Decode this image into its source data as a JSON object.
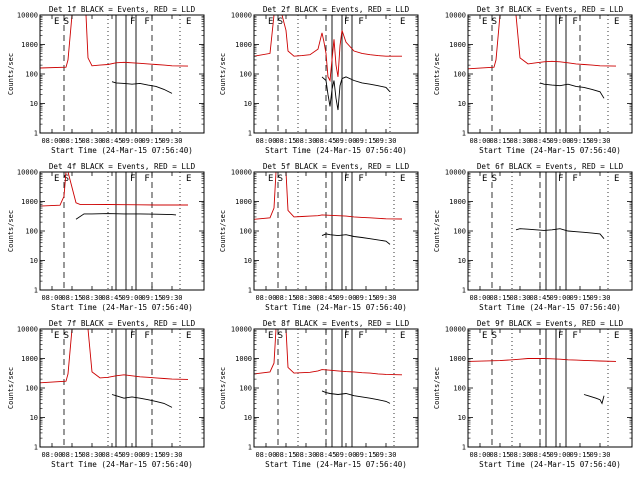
{
  "figure": {
    "shared": {
      "xlabel": "Start Time (24-Mar-15 07:56:40)",
      "ylabel": "Counts/sec",
      "x_tick_labels": [
        "08:00",
        "08:15",
        "08:30",
        "08:45",
        "09:00",
        "09:15",
        "09:30"
      ],
      "y_tick_labels": [
        "1",
        "10",
        "100",
        "1000",
        "10000"
      ],
      "region_markers": [
        "E",
        "S",
        "F",
        "F",
        "E"
      ],
      "colors": {
        "events": "#000000",
        "lld": "#cc0000",
        "axes": "#000000"
      }
    }
  },
  "chart_data": [
    {
      "type": "line",
      "title": "Det 1f BLACK = Events, RED = LLD",
      "xlabel": "Start Time (24-Mar-15 07:56:40)",
      "ylabel": "Counts/sec",
      "x_unit": "minutes after 08:00",
      "xlim": [
        -3,
        38
      ],
      "ylim": [
        1,
        10000
      ],
      "yscale": "log",
      "grid": false,
      "markers": {
        "dashed": [
          3,
          25
        ],
        "dotted": [
          14,
          32
        ],
        "solid": [
          16,
          18.5,
          21
        ]
      },
      "series": [
        {
          "name": "BLACK = Events",
          "color": "#000000",
          "x": [
            15,
            16,
            18,
            20,
            22,
            24,
            26,
            28,
            30
          ],
          "values": [
            55,
            50,
            48,
            45,
            48,
            42,
            38,
            30,
            22
          ]
        },
        {
          "name": "RED = LLD",
          "color": "#cc0000",
          "x": [
            -3,
            3.5,
            4,
            5,
            6,
            8.5,
            9,
            10,
            12,
            14,
            16,
            18,
            20,
            22,
            24,
            26,
            28,
            30,
            34
          ],
          "values": [
            160,
            170,
            300,
            10000,
            10000,
            10000,
            350,
            190,
            200,
            210,
            240,
            250,
            240,
            230,
            220,
            210,
            200,
            190,
            185
          ]
        }
      ]
    },
    {
      "type": "line",
      "title": "Det 2f BLACK = Events, RED = LLD",
      "xlabel": "Start Time (24-Mar-15 07:56:40)",
      "ylabel": "Counts/sec",
      "x_unit": "minutes after 08:00",
      "xlim": [
        -3,
        38
      ],
      "ylim": [
        1,
        10000
      ],
      "yscale": "log",
      "grid": false,
      "markers": {
        "dashed": [
          3,
          15
        ],
        "dotted": [
          8,
          31
        ],
        "solid": [
          16.5,
          19,
          21.5
        ]
      },
      "series": [
        {
          "name": "BLACK = Events",
          "color": "#000000",
          "x": [
            14,
            15,
            15.5,
            16,
            16.5,
            17,
            17.5,
            18,
            18.5,
            19,
            20,
            22,
            24,
            26,
            28,
            30,
            31
          ],
          "values": [
            80,
            60,
            20,
            8,
            30,
            60,
            15,
            6,
            40,
            70,
            80,
            60,
            50,
            45,
            40,
            35,
            25
          ]
        },
        {
          "name": "RED = LLD",
          "color": "#cc0000",
          "x": [
            -3,
            1,
            2,
            2.5,
            4,
            5,
            5.5,
            7,
            9,
            11,
            13,
            14,
            14.5,
            15,
            15.5,
            16,
            16.5,
            17,
            17.5,
            18,
            18.5,
            19,
            20,
            22,
            24,
            26,
            28,
            30,
            34
          ],
          "values": [
            400,
            500,
            10000,
            10000,
            10000,
            3000,
            600,
            400,
            420,
            450,
            700,
            2500,
            1200,
            500,
            80,
            60,
            300,
            1500,
            200,
            80,
            900,
            3000,
            1200,
            600,
            500,
            450,
            420,
            400,
            400
          ]
        }
      ]
    },
    {
      "type": "line",
      "title": "Det 3f BLACK = Events, RED = LLD",
      "xlabel": "Start Time (24-Mar-15 07:56:40)",
      "ylabel": "Counts/sec",
      "x_unit": "minutes after 08:00",
      "xlim": [
        -3,
        38
      ],
      "ylim": [
        1,
        10000
      ],
      "yscale": "log",
      "grid": false,
      "markers": {
        "dashed": [
          3,
          25
        ],
        "dotted": [
          15,
          32
        ],
        "solid": [
          16.5,
          19,
          21.5
        ]
      },
      "series": [
        {
          "name": "BLACK = Events",
          "color": "#000000",
          "x": [
            15,
            16,
            18,
            20,
            22,
            24,
            26,
            28,
            30,
            31
          ],
          "values": [
            50,
            45,
            42,
            40,
            45,
            38,
            35,
            30,
            25,
            15
          ]
        },
        {
          "name": "RED = LLD",
          "color": "#cc0000",
          "x": [
            -3,
            3.5,
            4,
            5,
            7,
            9,
            10,
            12,
            14,
            16,
            18,
            20,
            22,
            24,
            26,
            28,
            30,
            34
          ],
          "values": [
            150,
            170,
            300,
            10000,
            10000,
            10000,
            350,
            220,
            240,
            260,
            270,
            260,
            240,
            220,
            210,
            200,
            190,
            185
          ]
        }
      ]
    },
    {
      "type": "line",
      "title": "Det 4f BLACK = Events, RED = LLD",
      "xlabel": "Start Time (24-Mar-15 07:56:40)",
      "ylabel": "Counts/sec",
      "x_unit": "minutes after 08:00",
      "xlim": [
        -3,
        38
      ],
      "ylim": [
        1,
        10000
      ],
      "yscale": "log",
      "grid": false,
      "markers": {
        "dashed": [
          3,
          25
        ],
        "dotted": [
          14,
          32
        ],
        "solid": [
          16,
          18.5,
          21
        ]
      },
      "series": [
        {
          "name": "BLACK = Events",
          "color": "#000000",
          "x": [
            6,
            8,
            10,
            14,
            18,
            22,
            26,
            30,
            31
          ],
          "values": [
            250,
            380,
            380,
            390,
            380,
            380,
            370,
            360,
            350
          ]
        },
        {
          "name": "RED = LLD",
          "color": "#cc0000",
          "x": [
            -3,
            2,
            3,
            3.5,
            4,
            5,
            6,
            7,
            10,
            14,
            18,
            22,
            26,
            30,
            34
          ],
          "values": [
            700,
            750,
            1500,
            10000,
            10000,
            3000,
            900,
            800,
            800,
            790,
            780,
            770,
            760,
            760,
            760
          ]
        }
      ]
    },
    {
      "type": "line",
      "title": "Det 5f BLACK = Events, RED = LLD",
      "xlabel": "Start Time (24-Mar-15 07:56:40)",
      "ylabel": "Counts/sec",
      "x_unit": "minutes after 08:00",
      "xlim": [
        -3,
        38
      ],
      "ylim": [
        1,
        10000
      ],
      "yscale": "log",
      "grid": false,
      "markers": {
        "dashed": [
          3,
          15
        ],
        "dotted": [
          8,
          32
        ],
        "solid": [
          16.5,
          19,
          21.5
        ]
      },
      "series": [
        {
          "name": "BLACK = Events",
          "color": "#000000",
          "x": [
            14,
            15,
            16,
            18,
            20,
            22,
            24,
            26,
            28,
            30,
            31
          ],
          "values": [
            70,
            80,
            75,
            70,
            75,
            65,
            60,
            55,
            50,
            45,
            35
          ]
        },
        {
          "name": "RED = LLD",
          "color": "#cc0000",
          "x": [
            -3,
            1,
            2,
            2.5,
            4,
            5,
            5.5,
            7,
            9,
            11,
            13,
            14,
            16,
            18,
            20,
            22,
            24,
            26,
            28,
            30,
            34
          ],
          "values": [
            250,
            280,
            600,
            10000,
            10000,
            10000,
            500,
            300,
            310,
            320,
            330,
            350,
            340,
            330,
            320,
            300,
            290,
            280,
            270,
            260,
            255
          ]
        }
      ]
    },
    {
      "type": "line",
      "title": "Det 6f BLACK = Events, RED = LLD",
      "xlabel": "Start Time (24-Mar-15 07:56:40)",
      "ylabel": "Counts/sec",
      "x_unit": "minutes after 08:00",
      "xlim": [
        -3,
        38
      ],
      "ylim": [
        1,
        10000
      ],
      "yscale": "log",
      "grid": false,
      "markers": {
        "dashed": [
          3,
          15
        ],
        "dotted": [
          8,
          32
        ],
        "solid": [
          16.5,
          19,
          21.5
        ]
      },
      "series": [
        {
          "name": "BLACK = Events",
          "color": "#000000",
          "x": [
            9,
            10,
            12,
            14,
            16,
            18,
            20,
            22,
            24,
            26,
            28,
            30,
            31
          ],
          "values": [
            110,
            120,
            115,
            110,
            105,
            110,
            120,
            100,
            95,
            90,
            85,
            80,
            55
          ]
        }
      ]
    },
    {
      "type": "line",
      "title": "Det 7f BLACK = Events, RED = LLD",
      "xlabel": "Start Time (24-Mar-15 07:56:40)",
      "ylabel": "Counts/sec",
      "x_unit": "minutes after 08:00",
      "xlim": [
        -3,
        38
      ],
      "ylim": [
        1,
        10000
      ],
      "yscale": "log",
      "grid": false,
      "markers": {
        "dashed": [
          3,
          25
        ],
        "dotted": [
          14,
          32
        ],
        "solid": [
          16,
          18.5,
          21
        ]
      },
      "series": [
        {
          "name": "BLACK = Events",
          "color": "#000000",
          "x": [
            15,
            16,
            18,
            20,
            22,
            24,
            26,
            28,
            30
          ],
          "values": [
            60,
            55,
            45,
            50,
            45,
            40,
            35,
            30,
            22
          ]
        },
        {
          "name": "RED = LLD",
          "color": "#cc0000",
          "x": [
            -3,
            3.5,
            4,
            5,
            7,
            9,
            10,
            12,
            14,
            16,
            18,
            20,
            22,
            24,
            26,
            28,
            30,
            34
          ],
          "values": [
            150,
            170,
            300,
            10000,
            10000,
            10000,
            350,
            220,
            230,
            260,
            280,
            260,
            240,
            230,
            220,
            210,
            200,
            195
          ]
        }
      ]
    },
    {
      "type": "line",
      "title": "Det 8f BLACK = Events, RED = LLD",
      "xlabel": "Start Time (24-Mar-15 07:56:40)",
      "ylabel": "Counts/sec",
      "x_unit": "minutes after 08:00",
      "xlim": [
        -3,
        38
      ],
      "ylim": [
        1,
        10000
      ],
      "yscale": "log",
      "grid": false,
      "markers": {
        "dashed": [
          3,
          15
        ],
        "dotted": [
          8,
          32
        ],
        "solid": [
          16.5,
          19,
          21.5
        ]
      },
      "series": [
        {
          "name": "BLACK = Events",
          "color": "#000000",
          "x": [
            14,
            15,
            16,
            18,
            20,
            22,
            24,
            26,
            28,
            30,
            31
          ],
          "values": [
            80,
            70,
            65,
            60,
            65,
            55,
            50,
            45,
            40,
            35,
            30
          ]
        },
        {
          "name": "RED = LLD",
          "color": "#cc0000",
          "x": [
            -3,
            1,
            2,
            2.5,
            4,
            5,
            5.5,
            7,
            9,
            11,
            13,
            14,
            16,
            18,
            20,
            22,
            24,
            26,
            28,
            30,
            34
          ],
          "values": [
            300,
            350,
            700,
            10000,
            10000,
            10000,
            500,
            320,
            330,
            340,
            380,
            420,
            400,
            380,
            360,
            350,
            330,
            320,
            300,
            290,
            280
          ]
        }
      ]
    },
    {
      "type": "line",
      "title": "Det 9f BLACK = Events, RED = LLD",
      "xlabel": "Start Time (24-Mar-15 07:56:40)",
      "ylabel": "Counts/sec",
      "x_unit": "minutes after 08:00",
      "xlim": [
        -3,
        38
      ],
      "ylim": [
        1,
        10000
      ],
      "yscale": "log",
      "grid": false,
      "markers": {
        "dashed": [
          3,
          15
        ],
        "dotted": [
          8,
          32
        ],
        "solid": [
          16.5,
          19,
          21.5
        ]
      },
      "series": [
        {
          "name": "BLACK = Events",
          "color": "#000000",
          "x": [
            26,
            27,
            28,
            29,
            30,
            30.5,
            31
          ],
          "values": [
            60,
            55,
            50,
            45,
            40,
            30,
            55
          ]
        },
        {
          "name": "RED = LLD",
          "color": "#cc0000",
          "x": [
            -3,
            5,
            8,
            10,
            12,
            14,
            16,
            18,
            20,
            22,
            24,
            26,
            28,
            30,
            34
          ],
          "values": [
            800,
            850,
            900,
            950,
            1000,
            1000,
            1000,
            980,
            950,
            900,
            880,
            860,
            840,
            820,
            800
          ]
        }
      ]
    }
  ]
}
